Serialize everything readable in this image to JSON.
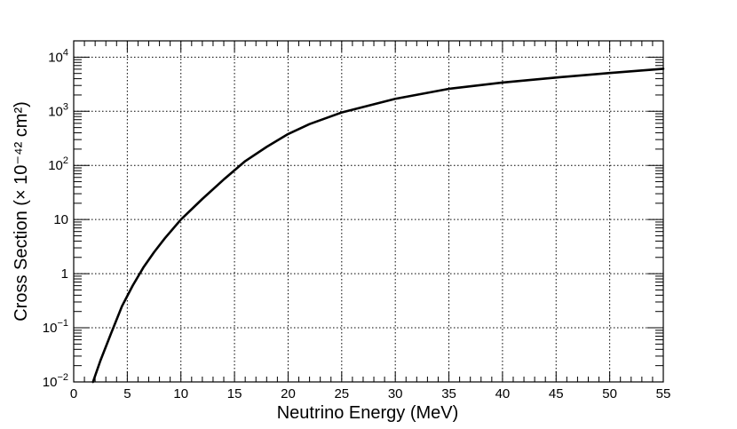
{
  "chart_data": {
    "type": "line",
    "xlabel": "Neutrino Energy (MeV)",
    "ylabel": "Cross Section (× 10⁻⁴² cm²)",
    "xlim": [
      0,
      55
    ],
    "ylim": [
      0.01,
      20000
    ],
    "y_scale": "log",
    "grid": true,
    "x_ticks": [
      0,
      5,
      10,
      15,
      20,
      25,
      30,
      35,
      40,
      45,
      50,
      55
    ],
    "y_ticks": [
      {
        "value": 0.01,
        "base": "10",
        "exp": "−2"
      },
      {
        "value": 0.1,
        "base": "10",
        "exp": "−1"
      },
      {
        "value": 1,
        "base": "1",
        "exp": ""
      },
      {
        "value": 10,
        "base": "10",
        "exp": ""
      },
      {
        "value": 100,
        "base": "10",
        "exp": "2"
      },
      {
        "value": 1000,
        "base": "10",
        "exp": "3"
      },
      {
        "value": 10000,
        "base": "10",
        "exp": "4"
      }
    ],
    "series": [
      {
        "color": "#000000",
        "x": [
          1.8,
          2.5,
          3.5,
          4.5,
          5.5,
          6.5,
          7.5,
          8.5,
          10,
          12,
          14,
          16,
          18,
          20,
          22,
          25,
          30,
          35,
          40,
          45,
          50,
          55
        ],
        "y": [
          0.01,
          0.025,
          0.08,
          0.25,
          0.6,
          1.3,
          2.5,
          4.5,
          10,
          24,
          55,
          120,
          220,
          380,
          580,
          950,
          1700,
          2600,
          3400,
          4200,
          5100,
          6100
        ]
      }
    ]
  }
}
